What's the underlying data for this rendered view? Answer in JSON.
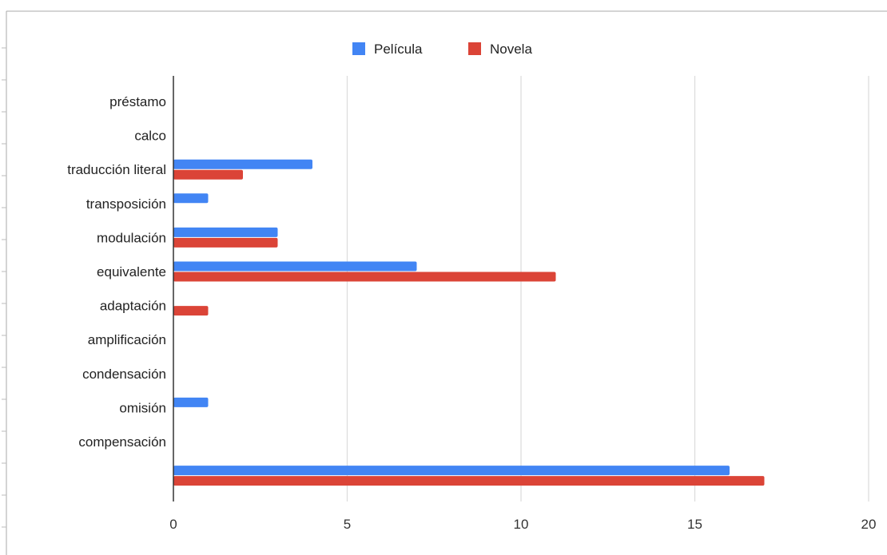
{
  "chart_data": {
    "type": "bar",
    "orientation": "horizontal",
    "categories": [
      "préstamo",
      "calco",
      "traducción literal",
      "transposición",
      "modulación",
      "equivalente",
      "adaptación",
      "amplificación",
      "condensación",
      "omisión",
      "compensación",
      ""
    ],
    "series": [
      {
        "name": "Película",
        "color": "#4285f4",
        "values": [
          0,
          0,
          4,
          1,
          3,
          7,
          0,
          0,
          0,
          1,
          0,
          16
        ]
      },
      {
        "name": "Novela",
        "color": "#db4437",
        "values": [
          0,
          0,
          2,
          0,
          3,
          11,
          1,
          0,
          0,
          0,
          0,
          17
        ]
      }
    ],
    "title": "",
    "xlabel": "",
    "ylabel": "",
    "xlim": [
      0,
      20
    ],
    "xticks": [
      "0",
      "5",
      "10",
      "15",
      "20"
    ],
    "grid": true,
    "legend_position": "top"
  }
}
